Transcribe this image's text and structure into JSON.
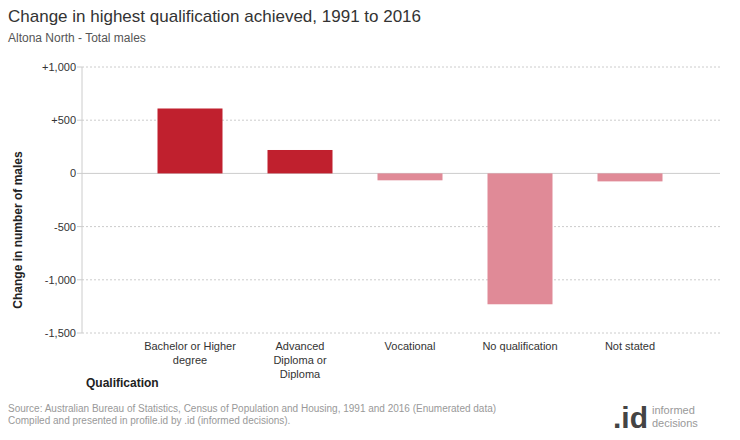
{
  "chart_data": {
    "type": "bar",
    "title": "Change in highest qualification achieved, 1991 to 2016",
    "subtitle": "Altona North - Total males",
    "x_label": "Qualification",
    "y_label": "Change in number of males",
    "categories": [
      "Bachelor or Higher degree",
      "Advanced Diploma or Diploma",
      "Vocational",
      "No qualification",
      "Not stated"
    ],
    "values": [
      610,
      220,
      -65,
      -1230,
      -75
    ],
    "colors": [
      "#c0202e",
      "#c0202e",
      "#e08a97",
      "#e08a97",
      "#e08a97"
    ],
    "ylim": [
      -1500,
      1000
    ],
    "yticks": [
      {
        "value": -1500,
        "label": "-1,500"
      },
      {
        "value": -1000,
        "label": "-1,000"
      },
      -500,
      0,
      {
        "value": 500,
        "label": "+500"
      },
      {
        "value": 1000,
        "label": "+1,000"
      }
    ],
    "grid": true,
    "source": [
      "Source: Australian Bureau of Statistics, Census of Population and Housing, 1991 and 2016 (Enumerated data)",
      "Compiled and presented in profile.id by .id (informed decisions)."
    ],
    "logo": [
      ".id",
      "informed",
      "decisions"
    ]
  }
}
